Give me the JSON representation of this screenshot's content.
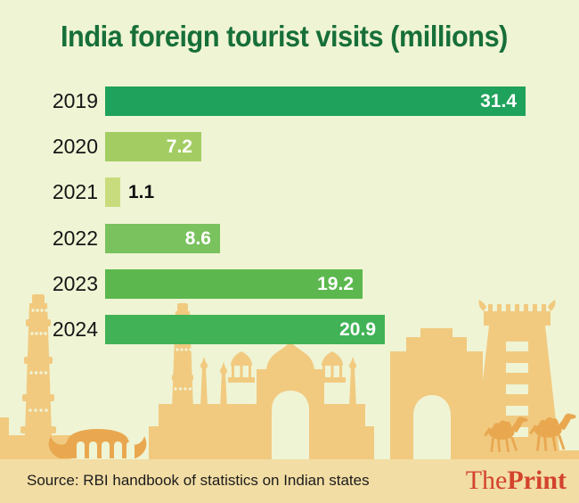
{
  "title": "India foreign tourist visits (millions)",
  "chart_data": {
    "type": "bar",
    "orientation": "horizontal",
    "title": "India foreign tourist visits (millions)",
    "categories": [
      "2019",
      "2020",
      "2021",
      "2022",
      "2023",
      "2024"
    ],
    "values": [
      31.4,
      7.2,
      1.1,
      8.6,
      19.2,
      20.9
    ],
    "value_labels": [
      "31.4",
      "7.2",
      "1.1",
      "8.6",
      "19.2",
      "20.9"
    ],
    "xlim": [
      0,
      31.4
    ],
    "grid": false,
    "legend": false,
    "bar_colors": [
      "#1fa25b",
      "#a3cd62",
      "#c9dc7d",
      "#79c25e",
      "#5cb84e",
      "#41b356"
    ],
    "value_label_placement": [
      "inside",
      "inside",
      "outside",
      "inside",
      "inside",
      "inside"
    ]
  },
  "footer": {
    "source": "Source: RBI handbook of statistics on Indian states",
    "brand_the": "The",
    "brand_print": "Print"
  },
  "colors": {
    "background": "#eff4d4",
    "title_green": "#176f39",
    "footer_band": "#f2dda4",
    "skyline_tan": "#f1ca80",
    "skyline_dark_tan": "#e9a850",
    "brand_red": "#d3432d",
    "value_inside_text": "#ffffff",
    "value_outside_text": "#111111"
  },
  "icons": {
    "skyline": "india-monuments-skyline",
    "elements": [
      "qutub-minar",
      "minar",
      "mosque",
      "gateway-arch",
      "gopuram",
      "houseboat",
      "camel"
    ]
  }
}
